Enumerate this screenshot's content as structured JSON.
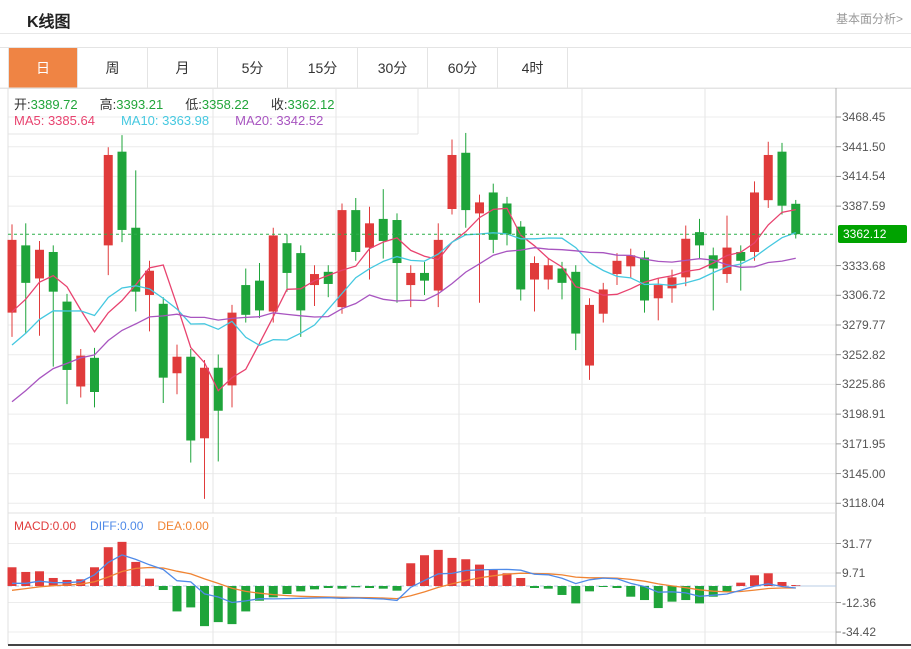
{
  "header": {
    "title": "K线图",
    "link": "基本面分析>"
  },
  "tabs": {
    "items": [
      {
        "label": "日",
        "active": true
      },
      {
        "label": "周",
        "active": false
      },
      {
        "label": "月",
        "active": false
      },
      {
        "label": "5分",
        "active": false
      },
      {
        "label": "15分",
        "active": false
      },
      {
        "label": "30分",
        "active": false
      },
      {
        "label": "60分",
        "active": false
      },
      {
        "label": "4时",
        "active": false
      }
    ]
  },
  "legend": {
    "ohlc": [
      {
        "label": "开:",
        "value": "3389.72"
      },
      {
        "label": "高:",
        "value": "3393.21"
      },
      {
        "label": "低:",
        "value": "3358.22"
      },
      {
        "label": "收:",
        "value": "3362.12"
      }
    ],
    "ma": [
      {
        "label": "MA5: ",
        "value": "3385.64",
        "color": "#e8436f"
      },
      {
        "label": "MA10: ",
        "value": "3363.98",
        "color": "#45c8e0"
      },
      {
        "label": "MA20: ",
        "value": "3342.52",
        "color": "#a855c0"
      }
    ]
  },
  "macd_legend": [
    {
      "label": "MACD:",
      "value": "0.00",
      "color": "#e03b3b"
    },
    {
      "label": "DIFF:",
      "value": "0.00",
      "color": "#4f8ae8"
    },
    {
      "label": "DEA:",
      "value": "0.00",
      "color": "#f08433"
    }
  ],
  "price_badge": "3362.12",
  "colors": {
    "up": "#e03b3b",
    "down": "#1ea43a",
    "ma5": "#e8436f",
    "ma10": "#45c8e0",
    "ma20": "#a855c0",
    "diff": "#4f8ae8",
    "dea": "#f08433",
    "dotted_line": "#2daf4a",
    "badge_bg": "#00a300",
    "tab_active_bg": "#ef8444",
    "ohlc_value": "#21a53a",
    "grid": "#ececec",
    "vgrid": "#e6e6e6",
    "axis_line": "#b0b0b0",
    "bottom_line": "#444444",
    "zero_dash": "#b9cce4"
  },
  "chart_data": {
    "type": "candlestick+macd",
    "title": "K线图 (daily gold/XAU candles)",
    "legend_position": "top-left",
    "grid": true,
    "main": {
      "current_price": 3362.12,
      "ylim": [
        3109,
        3495
      ],
      "y_ticks": [
        {
          "label": "3468.45",
          "value": 3468.45
        },
        {
          "label": "3441.50",
          "value": 3441.5
        },
        {
          "label": "3414.54",
          "value": 3414.54
        },
        {
          "label": "3387.59",
          "value": 3387.59
        },
        {
          "label": "3333.68",
          "value": 3333.68
        },
        {
          "label": "3306.72",
          "value": 3306.72
        },
        {
          "label": "3279.77",
          "value": 3279.77
        },
        {
          "label": "3252.82",
          "value": 3252.82
        },
        {
          "label": "3225.86",
          "value": 3225.86
        },
        {
          "label": "3198.91",
          "value": 3198.91
        },
        {
          "label": "3171.95",
          "value": 3171.95
        },
        {
          "label": "3145.00",
          "value": 3145.0
        },
        {
          "label": "3118.04",
          "value": 3118.04
        }
      ],
      "candles_ohlc_order": "[open, high, low, close]",
      "candles": [
        [
          3291,
          3371,
          3269,
          3357
        ],
        [
          3352,
          3372,
          3272,
          3318
        ],
        [
          3322,
          3356,
          3270,
          3348
        ],
        [
          3346,
          3352,
          3242,
          3310
        ],
        [
          3301,
          3308,
          3208,
          3239
        ],
        [
          3224,
          3258,
          3214,
          3252
        ],
        [
          3250,
          3259,
          3205,
          3219
        ],
        [
          3352,
          3441,
          3325,
          3434
        ],
        [
          3437,
          3452,
          3355,
          3366
        ],
        [
          3368,
          3420,
          3292,
          3310
        ],
        [
          3307,
          3338,
          3274,
          3329
        ],
        [
          3299,
          3305,
          3209,
          3232
        ],
        [
          3236,
          3262,
          3217,
          3251
        ],
        [
          3251,
          3258,
          3155,
          3175
        ],
        [
          3177,
          3248,
          3122,
          3241
        ],
        [
          3241,
          3253,
          3156,
          3202
        ],
        [
          3225,
          3298,
          3205,
          3291
        ],
        [
          3316,
          3331,
          3282,
          3289
        ],
        [
          3320,
          3336,
          3286,
          3293
        ],
        [
          3292,
          3368,
          3282,
          3361
        ],
        [
          3354,
          3362,
          3310,
          3327
        ],
        [
          3345,
          3352,
          3269,
          3293
        ],
        [
          3316,
          3334,
          3297,
          3326
        ],
        [
          3328,
          3334,
          3305,
          3317
        ],
        [
          3296,
          3390,
          3290,
          3384
        ],
        [
          3384,
          3395,
          3338,
          3346
        ],
        [
          3350,
          3387,
          3321,
          3372
        ],
        [
          3376,
          3403,
          3340,
          3356
        ],
        [
          3375,
          3381,
          3300,
          3336
        ],
        [
          3316,
          3334,
          3296,
          3327
        ],
        [
          3327,
          3337,
          3307,
          3320
        ],
        [
          3311,
          3372,
          3296,
          3357
        ],
        [
          3385,
          3448,
          3380,
          3434
        ],
        [
          3436,
          3454,
          3368,
          3384
        ],
        [
          3381,
          3398,
          3300,
          3391
        ],
        [
          3400,
          3408,
          3345,
          3357
        ],
        [
          3390,
          3396,
          3352,
          3362
        ],
        [
          3369,
          3374,
          3302,
          3312
        ],
        [
          3321,
          3342,
          3292,
          3336
        ],
        [
          3321,
          3340,
          3312,
          3334
        ],
        [
          3331,
          3337,
          3303,
          3318
        ],
        [
          3328,
          3334,
          3257,
          3272
        ],
        [
          3243,
          3304,
          3230,
          3298
        ],
        [
          3290,
          3318,
          3282,
          3312
        ],
        [
          3326,
          3345,
          3316,
          3338
        ],
        [
          3333,
          3349,
          3322,
          3343
        ],
        [
          3341,
          3347,
          3291,
          3302
        ],
        [
          3304,
          3322,
          3284,
          3316
        ],
        [
          3313,
          3330,
          3300,
          3323
        ],
        [
          3323,
          3370,
          3315,
          3358
        ],
        [
          3364,
          3376,
          3340,
          3352
        ],
        [
          3343,
          3350,
          3293,
          3331
        ],
        [
          3326,
          3379,
          3318,
          3350
        ],
        [
          3346,
          3352,
          3311,
          3338
        ],
        [
          3346,
          3410,
          3338,
          3400
        ],
        [
          3393,
          3446,
          3386,
          3434
        ],
        [
          3437,
          3445,
          3380,
          3388
        ],
        [
          3389.72,
          3393.21,
          3358.22,
          3362.12
        ]
      ],
      "ma_periods": [
        5,
        10,
        20
      ],
      "ma_final_values": {
        "MA5": 3385.64,
        "MA10": 3363.98,
        "MA20": 3342.52
      }
    },
    "macd": {
      "y_ticks": [
        {
          "label": "31.77",
          "value": 31.77
        },
        {
          "label": "9.71",
          "value": 9.71
        },
        {
          "label": "-12.36",
          "value": -12.36
        },
        {
          "label": "-34.42",
          "value": -34.42
        }
      ],
      "final_values": {
        "MACD": 0.0,
        "DIFF": 0.0,
        "DEA": 0.0
      },
      "histogram": [
        14,
        10.5,
        11,
        6,
        4.5,
        5,
        14,
        29,
        33,
        18,
        5.5,
        -3,
        -19,
        -16,
        -30,
        -27,
        -28.5,
        -19,
        -11,
        -8.5,
        -6,
        -4,
        -2.5,
        -1.5,
        -2,
        -1,
        -1.5,
        -2,
        -3.5,
        17,
        23,
        27,
        21,
        20,
        16,
        12.5,
        9.5,
        6,
        -1.5,
        -2,
        -6.7,
        -13,
        -4,
        -0.5,
        -1.5,
        -8,
        -10.5,
        -16.5,
        -11.7,
        -10.5,
        -13,
        -8,
        -4.2,
        2.5,
        8,
        9.5,
        3,
        0
      ]
    }
  }
}
